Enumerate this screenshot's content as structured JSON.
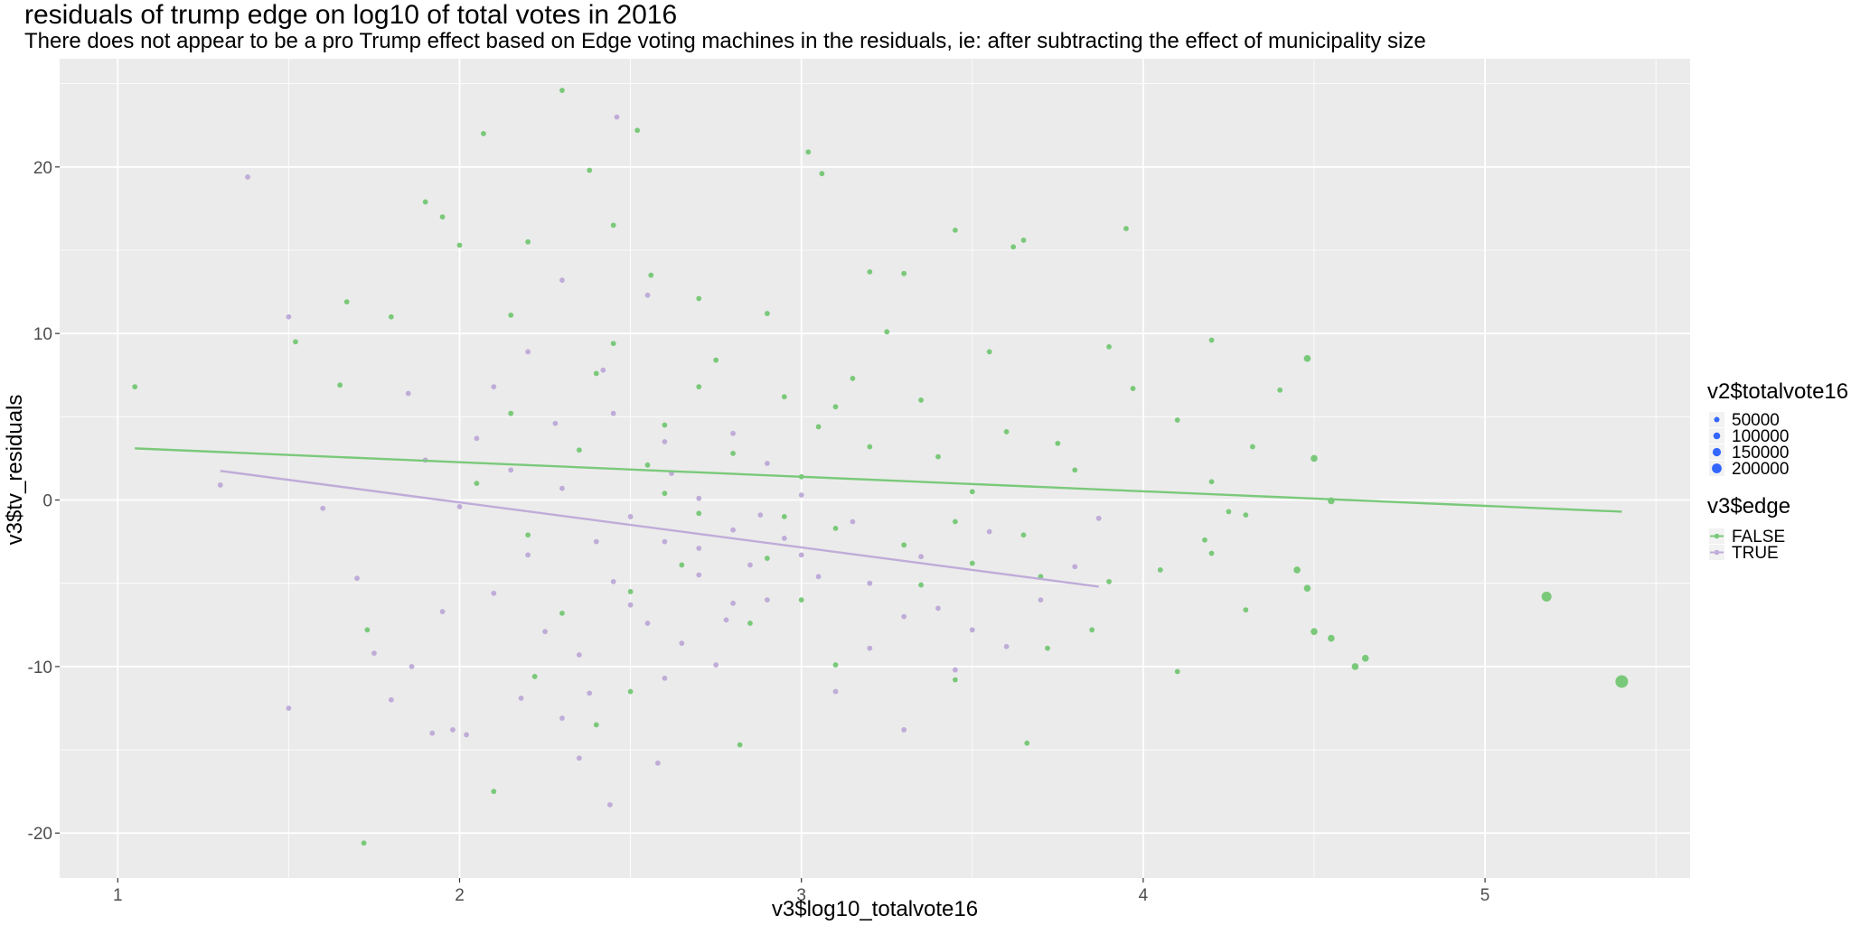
{
  "title": "residuals of trump edge on log10 of total votes in 2016",
  "subtitle": "There does not appear to be a pro Trump effect based on Edge voting machines in the residuals, ie: after subtracting the effect of municipality size",
  "colors": {
    "panel_bg": "#ebebeb",
    "grid_major": "#ffffff",
    "false_series": "#7ac97a",
    "true_series": "#bfacd8",
    "size_legend": "#3366ff"
  },
  "chart_data": {
    "type": "scatter",
    "xlabel": "v3$log10_totalvote16",
    "ylabel": "v3$tv_residuals",
    "xlim": [
      0.83,
      5.6
    ],
    "ylim": [
      -22.7,
      26.5
    ],
    "x_ticks": [
      1,
      2,
      3,
      4,
      5
    ],
    "y_ticks": [
      -20,
      -10,
      0,
      10,
      20
    ],
    "grid": true,
    "legend_position": "right",
    "size_legend": {
      "title": "v2$totalvote16",
      "breaks": [
        "50000",
        "100000",
        "150000",
        "200000"
      ]
    },
    "color_legend": {
      "title": "v3$edge",
      "entries": [
        "FALSE",
        "TRUE"
      ]
    },
    "series": [
      {
        "name": "FALSE",
        "color": "#7ac97a",
        "fit_line": {
          "x": [
            1.05,
            5.4
          ],
          "y": [
            3.1,
            -0.7
          ]
        },
        "points": [
          [
            1.05,
            6.8
          ],
          [
            1.52,
            9.5
          ],
          [
            1.65,
            6.9
          ],
          [
            1.67,
            11.9
          ],
          [
            1.8,
            11.0
          ],
          [
            1.9,
            17.9
          ],
          [
            1.95,
            17.0
          ],
          [
            2.0,
            15.3
          ],
          [
            2.07,
            22.0
          ],
          [
            2.15,
            11.1
          ],
          [
            2.2,
            15.5
          ],
          [
            2.3,
            24.6
          ],
          [
            2.38,
            19.8
          ],
          [
            2.45,
            16.5
          ],
          [
            2.52,
            22.2
          ],
          [
            2.56,
            13.5
          ],
          [
            2.7,
            12.1
          ],
          [
            3.02,
            20.9
          ],
          [
            3.06,
            19.6
          ],
          [
            3.2,
            13.7
          ],
          [
            3.3,
            13.6
          ],
          [
            3.45,
            16.2
          ],
          [
            3.62,
            15.2
          ],
          [
            3.65,
            15.6
          ],
          [
            3.95,
            16.3
          ],
          [
            3.9,
            9.2
          ],
          [
            3.97,
            6.7
          ],
          [
            4.2,
            9.6
          ],
          [
            4.48,
            8.5
          ],
          [
            4.4,
            6.6
          ],
          [
            4.32,
            3.2
          ],
          [
            4.5,
            2.5
          ],
          [
            4.55,
            -0.05
          ],
          [
            4.1,
            4.8
          ],
          [
            4.2,
            1.1
          ],
          [
            4.25,
            -0.7
          ],
          [
            4.3,
            -0.9
          ],
          [
            4.18,
            -2.4
          ],
          [
            4.2,
            -3.2
          ],
          [
            4.05,
            -4.2
          ],
          [
            4.1,
            -10.3
          ],
          [
            4.3,
            -6.6
          ],
          [
            4.45,
            -4.2
          ],
          [
            4.48,
            -5.3
          ],
          [
            4.5,
            -7.9
          ],
          [
            4.55,
            -8.3
          ],
          [
            4.62,
            -10.0
          ],
          [
            4.65,
            -9.5
          ],
          [
            5.18,
            -5.8
          ],
          [
            5.4,
            -10.9
          ],
          [
            3.72,
            -8.9
          ],
          [
            3.66,
            -14.6
          ],
          [
            3.45,
            -10.8
          ],
          [
            2.82,
            -14.7
          ],
          [
            2.1,
            -17.5
          ],
          [
            2.4,
            -13.5
          ],
          [
            1.72,
            -20.6
          ],
          [
            1.73,
            -7.8
          ],
          [
            2.22,
            -10.6
          ],
          [
            2.5,
            -11.5
          ],
          [
            3.1,
            -9.9
          ],
          [
            2.8,
            2.8
          ],
          [
            3.0,
            1.4
          ],
          [
            3.2,
            3.2
          ],
          [
            3.5,
            0.5
          ],
          [
            2.7,
            -0.8
          ],
          [
            3.1,
            -1.7
          ],
          [
            2.6,
            4.5
          ],
          [
            3.3,
            -2.7
          ],
          [
            2.95,
            6.2
          ],
          [
            2.4,
            7.6
          ],
          [
            3.6,
            4.1
          ],
          [
            2.9,
            -3.5
          ],
          [
            2.5,
            -5.5
          ],
          [
            3.4,
            2.6
          ],
          [
            2.75,
            8.4
          ],
          [
            3.15,
            7.3
          ],
          [
            2.2,
            -2.1
          ],
          [
            3.7,
            -4.6
          ],
          [
            2.6,
            0.4
          ],
          [
            3.8,
            1.8
          ],
          [
            2.35,
            3.0
          ],
          [
            3.0,
            -6.0
          ],
          [
            3.35,
            -5.1
          ],
          [
            2.45,
            9.4
          ],
          [
            3.55,
            8.9
          ],
          [
            2.85,
            -7.4
          ],
          [
            2.15,
            5.2
          ],
          [
            3.25,
            10.1
          ],
          [
            3.05,
            4.4
          ],
          [
            2.65,
            -3.9
          ],
          [
            3.45,
            -1.3
          ],
          [
            2.9,
            11.2
          ],
          [
            2.55,
            2.1
          ],
          [
            3.75,
            3.4
          ],
          [
            2.3,
            -6.8
          ],
          [
            3.65,
            -2.1
          ],
          [
            3.9,
            -4.9
          ],
          [
            2.95,
            -1.0
          ],
          [
            3.1,
            5.6
          ],
          [
            2.7,
            6.8
          ],
          [
            3.5,
            -3.8
          ],
          [
            2.05,
            1.0
          ],
          [
            3.85,
            -7.8
          ],
          [
            3.35,
            6.0
          ]
        ]
      },
      {
        "name": "TRUE",
        "color": "#bfacd8",
        "fit_line": {
          "x": [
            1.3,
            3.87
          ],
          "y": [
            1.75,
            -5.2
          ]
        },
        "points": [
          [
            1.3,
            0.9
          ],
          [
            1.38,
            19.4
          ],
          [
            1.5,
            11.0
          ],
          [
            1.5,
            -12.5
          ],
          [
            1.6,
            -0.5
          ],
          [
            1.7,
            -4.7
          ],
          [
            1.75,
            -9.2
          ],
          [
            1.8,
            -12.0
          ],
          [
            1.86,
            -10.0
          ],
          [
            1.92,
            -14.0
          ],
          [
            1.98,
            -13.8
          ],
          [
            2.02,
            -14.1
          ],
          [
            2.3,
            -13.1
          ],
          [
            2.35,
            -15.5
          ],
          [
            2.44,
            -18.3
          ],
          [
            2.46,
            23.0
          ],
          [
            2.58,
            -15.8
          ],
          [
            2.3,
            13.2
          ],
          [
            2.55,
            12.3
          ],
          [
            2.2,
            8.9
          ],
          [
            2.1,
            6.8
          ],
          [
            2.05,
            3.7
          ],
          [
            2.45,
            -4.9
          ],
          [
            2.6,
            -2.5
          ],
          [
            2.7,
            -4.5
          ],
          [
            2.8,
            -6.2
          ],
          [
            2.9,
            -6.0
          ],
          [
            3.0,
            -3.3
          ],
          [
            3.2,
            -5.0
          ],
          [
            3.3,
            -7.0
          ],
          [
            3.4,
            -6.5
          ],
          [
            3.5,
            -7.8
          ],
          [
            3.6,
            -8.8
          ],
          [
            3.7,
            -6.0
          ],
          [
            3.8,
            -4.0
          ],
          [
            3.87,
            -1.1
          ],
          [
            3.3,
            -13.8
          ],
          [
            3.1,
            -11.5
          ],
          [
            2.5,
            -1.0
          ],
          [
            2.4,
            -2.5
          ],
          [
            2.3,
            0.7
          ],
          [
            2.2,
            -3.3
          ],
          [
            2.1,
            -5.6
          ],
          [
            2.0,
            -0.4
          ],
          [
            1.9,
            2.4
          ],
          [
            2.6,
            3.5
          ],
          [
            2.7,
            0.1
          ],
          [
            2.8,
            -1.8
          ],
          [
            2.9,
            2.2
          ],
          [
            3.0,
            0.3
          ],
          [
            2.55,
            -7.4
          ],
          [
            2.65,
            -8.6
          ],
          [
            2.75,
            -9.9
          ],
          [
            2.85,
            -3.9
          ],
          [
            2.95,
            -2.3
          ],
          [
            3.05,
            -4.6
          ],
          [
            3.15,
            -1.3
          ],
          [
            2.25,
            -7.9
          ],
          [
            2.35,
            -9.3
          ],
          [
            2.15,
            1.8
          ],
          [
            1.95,
            -6.7
          ],
          [
            2.45,
            5.2
          ],
          [
            2.5,
            -6.3
          ],
          [
            2.6,
            -10.7
          ],
          [
            2.7,
            -2.9
          ],
          [
            2.8,
            4.0
          ],
          [
            3.2,
            -8.9
          ],
          [
            3.35,
            -3.4
          ],
          [
            3.45,
            -10.2
          ],
          [
            3.55,
            -1.9
          ],
          [
            2.38,
            -11.6
          ],
          [
            2.62,
            1.6
          ],
          [
            2.78,
            -7.2
          ],
          [
            2.88,
            -0.9
          ],
          [
            2.42,
            7.8
          ],
          [
            2.18,
            -11.9
          ],
          [
            2.28,
            4.6
          ],
          [
            1.85,
            6.4
          ]
        ]
      }
    ]
  }
}
